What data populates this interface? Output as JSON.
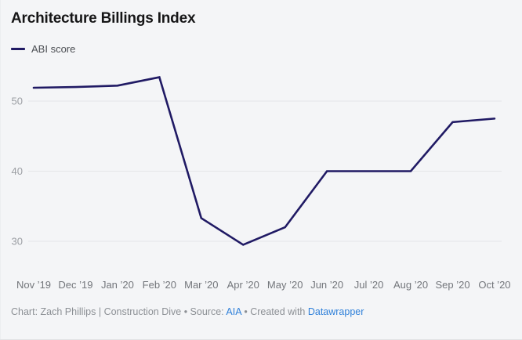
{
  "header": {
    "title": "Architecture Billings Index"
  },
  "legend": {
    "label": "ABI score",
    "swatch_color": "#201a64"
  },
  "chart_data": {
    "type": "line",
    "title": "Architecture Billings Index",
    "x": [
      "Nov ’19",
      "Dec ’19",
      "Jan ’20",
      "Feb ’20",
      "Mar ’20",
      "Apr ’20",
      "May ’20",
      "Jun ’20",
      "Jul ’20",
      "Aug ’20",
      "Sep ’20",
      "Oct ’20"
    ],
    "series": [
      {
        "name": "ABI score",
        "values": [
          51.9,
          52.0,
          52.2,
          53.4,
          33.3,
          29.5,
          32.0,
          40.0,
          40.0,
          40.0,
          47.0,
          47.5
        ]
      }
    ],
    "xlabel": "",
    "ylabel": "",
    "ylim": [
      27,
      55
    ],
    "yticks": [
      30,
      40,
      50
    ],
    "grid": "horizontal",
    "legend_position": "top-left",
    "line_color": "#201a64",
    "gridline_color": "#e4e5e8"
  },
  "footer": {
    "prefix": "Chart: Zach Phillips | Construction Dive • Source: ",
    "source_link": "AIA",
    "middle": " • Created with ",
    "created_link": "Datawrapper"
  }
}
